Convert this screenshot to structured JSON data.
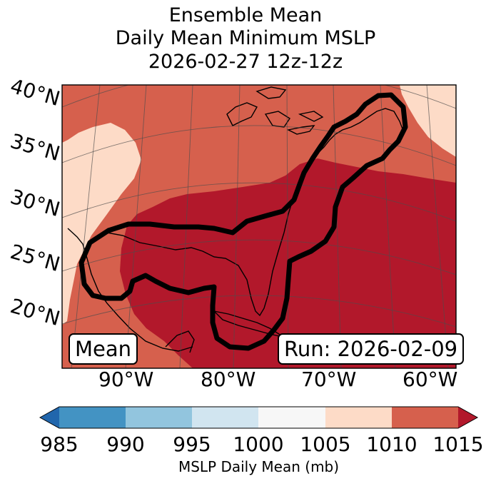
{
  "title": {
    "line1": "Ensemble Mean",
    "line2": "Daily Mean Minimum MSLP",
    "line3": "2026-02-27 12z-12z"
  },
  "map": {
    "lat_labels": [
      "40°N",
      "35°N",
      "30°N",
      "25°N",
      "20°N"
    ],
    "lon_labels": [
      "90°W",
      "80°W",
      "70°W",
      "60°W"
    ],
    "mean_box": "Mean",
    "run_box": "Run: 2026-02-09",
    "outline_icon": "region-outline-icon"
  },
  "colorbar": {
    "ticks": [
      "985",
      "990",
      "995",
      "1000",
      "1005",
      "1010",
      "1015"
    ],
    "label": "MSLP Daily Mean (mb)",
    "colors": [
      "#2166ac",
      "#4393c3",
      "#92c5de",
      "#d1e5f0",
      "#f7f7f7",
      "#fddbc7",
      "#d6604d",
      "#b2182b"
    ]
  }
}
